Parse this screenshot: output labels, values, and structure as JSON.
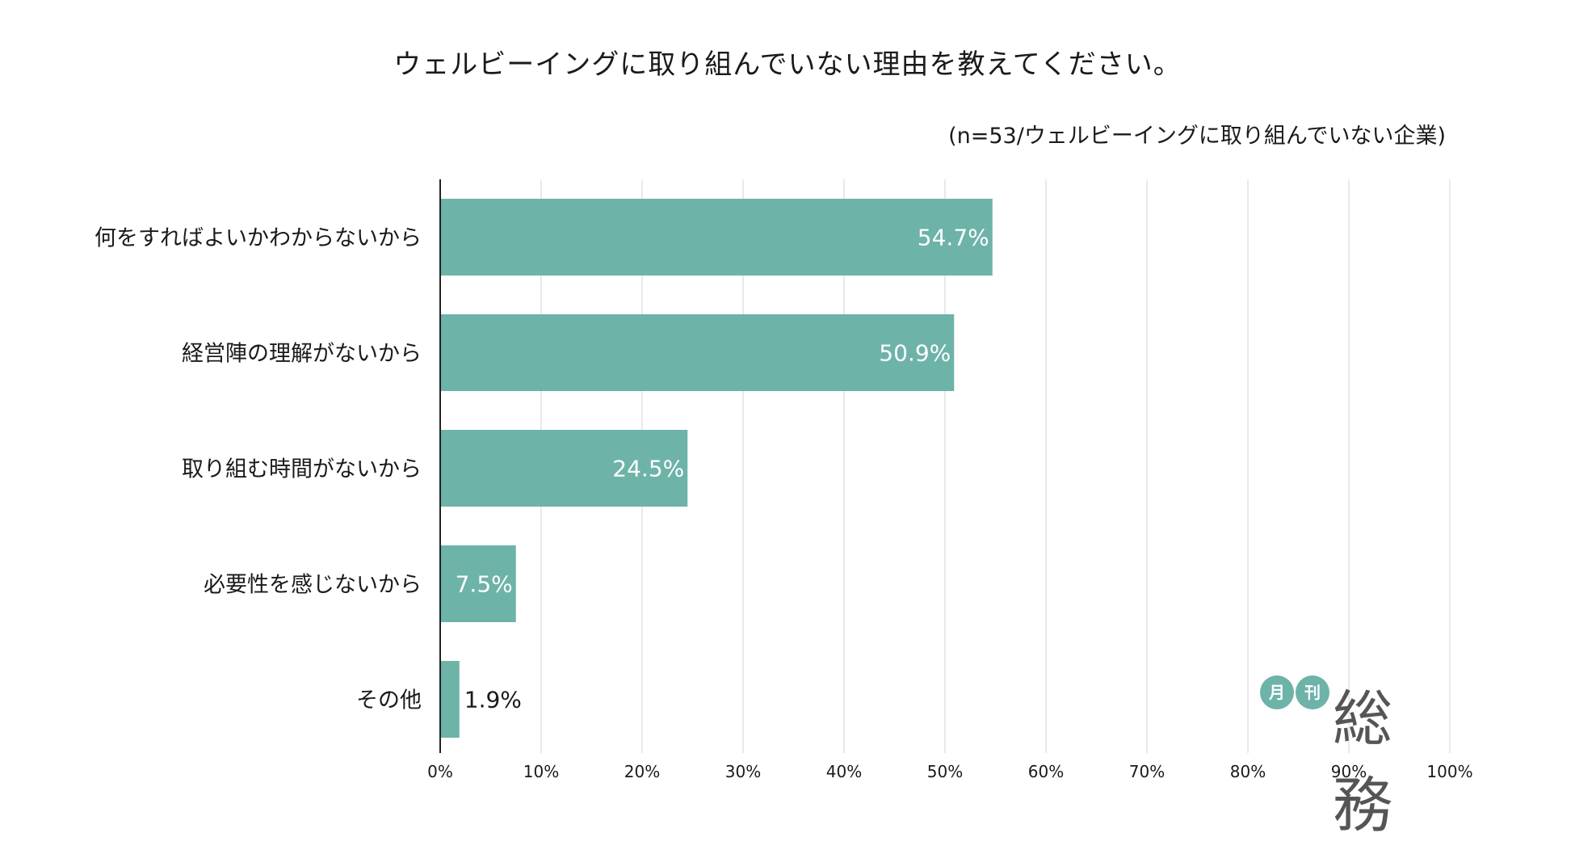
{
  "colors": {
    "bar": "#6db3a8",
    "axis": "#222222",
    "grid": "#e2e2e2",
    "logo_badge": "#6db3a8"
  },
  "logo": {
    "badge_1": "月",
    "badge_2": "刊",
    "word": "総務"
  },
  "chart_data": {
    "type": "bar",
    "orientation": "horizontal",
    "title": "ウェルビーイングに取り組んでいない理由を教えてください。",
    "subtitle": "(n=53/ウェルビーイングに取り組んでいない企業)",
    "categories": [
      "何をすればよいかわからないから",
      "経営陣の理解がないから",
      "取り組む時間がないから",
      "必要性を感じないから",
      "その他"
    ],
    "values": [
      54.7,
      50.9,
      24.5,
      7.5,
      1.9
    ],
    "value_labels": [
      "54.7%",
      "50.9%",
      "24.5%",
      "7.5%",
      "1.9%"
    ],
    "xlim": [
      0,
      100
    ],
    "xticks": [
      "0%",
      "10%",
      "20%",
      "30%",
      "40%",
      "50%",
      "60%",
      "70%",
      "80%",
      "90%",
      "100%"
    ],
    "grid": true,
    "legend": "none"
  }
}
